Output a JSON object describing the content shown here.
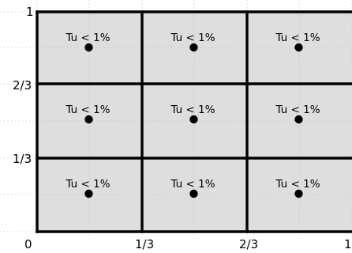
{
  "axes": {
    "x_ticks": [
      "0",
      "1/3",
      "2/3",
      "1"
    ],
    "y_ticks": [
      "1",
      "2/3",
      "1/3"
    ]
  },
  "grid": {
    "rows": 3,
    "cols": 3,
    "cell_label": "Tu < 1%",
    "cell_fill": "#dedede",
    "line_color": "#000000",
    "cells": [
      {
        "row": 0,
        "col": 0,
        "label": "Tu < 1%"
      },
      {
        "row": 0,
        "col": 1,
        "label": "Tu < 1%"
      },
      {
        "row": 0,
        "col": 2,
        "label": "Tu < 1%"
      },
      {
        "row": 1,
        "col": 0,
        "label": "Tu < 1%"
      },
      {
        "row": 1,
        "col": 1,
        "label": "Tu < 1%"
      },
      {
        "row": 1,
        "col": 2,
        "label": "Tu < 1%"
      },
      {
        "row": 2,
        "col": 0,
        "label": "Tu < 1%"
      },
      {
        "row": 2,
        "col": 1,
        "label": "Tu < 1%"
      },
      {
        "row": 2,
        "col": 2,
        "label": "Tu < 1%"
      }
    ]
  }
}
